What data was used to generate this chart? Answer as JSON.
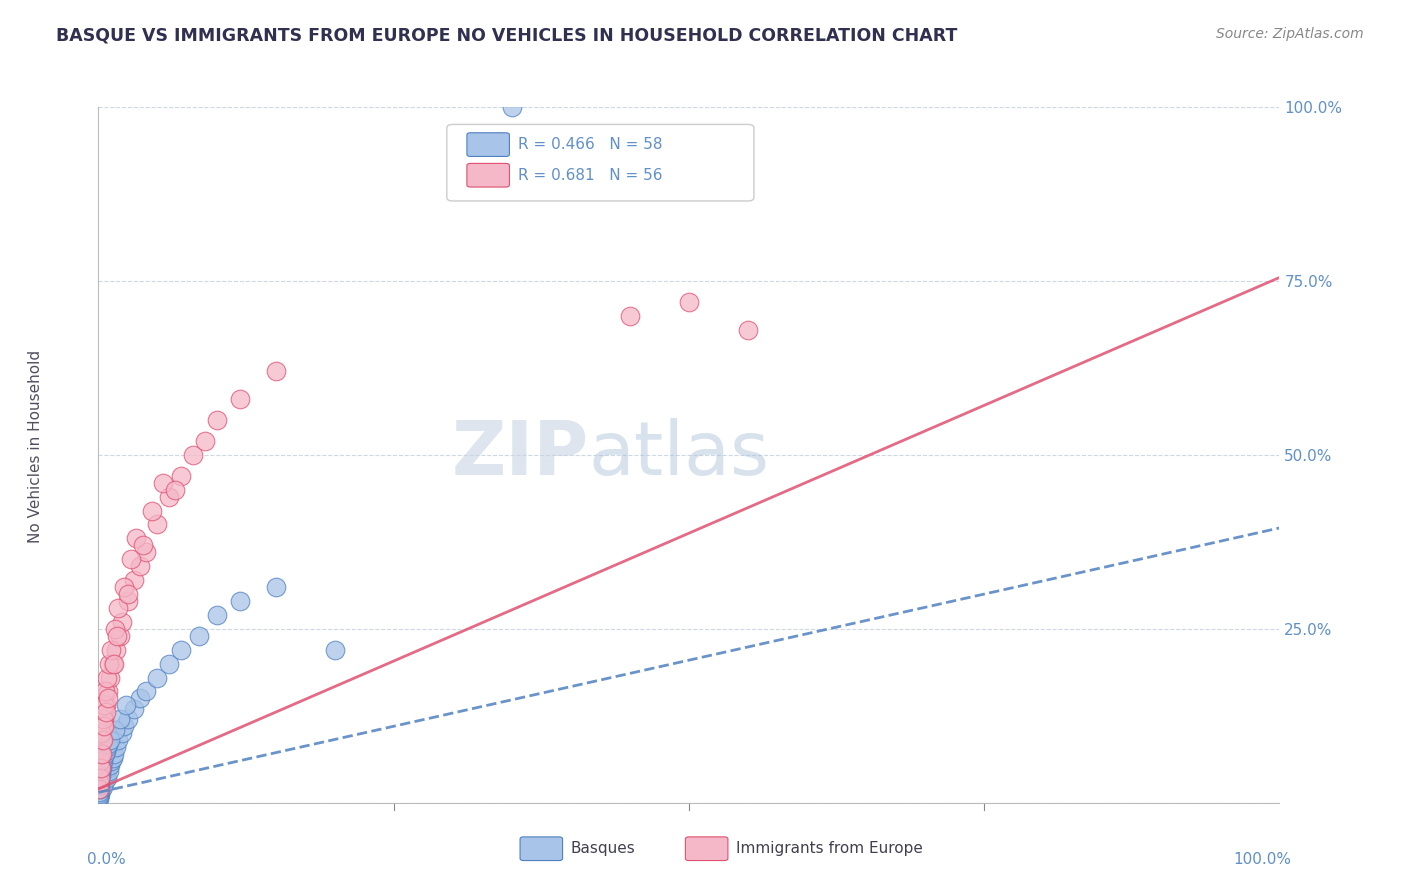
{
  "title": "BASQUE VS IMMIGRANTS FROM EUROPE NO VEHICLES IN HOUSEHOLD CORRELATION CHART",
  "source": "Source: ZipAtlas.com",
  "ylabel": "No Vehicles in Household",
  "legend_blue_r": "R = 0.466",
  "legend_blue_n": "N = 58",
  "legend_pink_r": "R = 0.681",
  "legend_pink_n": "N = 56",
  "watermark_zip": "ZIP",
  "watermark_atlas": "atlas",
  "blue_fill": "#a8c4e8",
  "blue_edge": "#5080c0",
  "pink_fill": "#f4b8c8",
  "pink_edge": "#e05070",
  "blue_line_color": "#5080c0",
  "pink_line_color": "#e05070",
  "axis_tick_color": "#6090c8",
  "title_color": "#303050",
  "grid_color": "#c8d4e4",
  "background_color": "#ffffff",
  "blue_line_slope": 0.38,
  "blue_line_intercept": 1.5,
  "pink_line_slope": 0.735,
  "pink_line_intercept": 2.0,
  "blue_scatter_x": [
    0.05,
    0.08,
    0.1,
    0.15,
    0.2,
    0.25,
    0.3,
    0.35,
    0.4,
    0.5,
    0.6,
    0.7,
    0.8,
    0.9,
    1.0,
    1.1,
    1.2,
    1.3,
    1.5,
    1.7,
    2.0,
    2.2,
    2.5,
    3.0,
    3.5,
    4.0,
    5.0,
    6.0,
    7.0,
    8.5,
    10.0,
    12.0,
    15.0,
    20.0,
    0.05,
    0.06,
    0.07,
    0.08,
    0.09,
    0.1,
    0.12,
    0.14,
    0.16,
    0.18,
    0.22,
    0.28,
    0.32,
    0.38,
    0.42,
    0.55,
    0.65,
    0.75,
    0.85,
    1.0,
    1.4,
    1.8,
    2.3,
    35.0
  ],
  "blue_scatter_y": [
    1.0,
    1.5,
    2.0,
    1.2,
    2.5,
    1.8,
    3.0,
    2.2,
    3.5,
    2.8,
    4.0,
    3.5,
    5.0,
    4.5,
    5.5,
    6.0,
    6.5,
    7.0,
    8.0,
    9.0,
    10.0,
    11.0,
    12.0,
    13.5,
    15.0,
    16.0,
    18.0,
    20.0,
    22.0,
    24.0,
    27.0,
    29.0,
    31.0,
    22.0,
    0.5,
    0.8,
    1.0,
    1.3,
    1.6,
    2.0,
    2.5,
    3.0,
    3.5,
    4.0,
    4.5,
    5.0,
    5.5,
    6.0,
    6.5,
    7.0,
    7.5,
    8.0,
    8.5,
    9.0,
    10.5,
    12.0,
    14.0,
    100.0
  ],
  "pink_scatter_x": [
    0.05,
    0.1,
    0.15,
    0.2,
    0.3,
    0.4,
    0.5,
    0.6,
    0.8,
    1.0,
    1.2,
    1.5,
    1.8,
    2.0,
    2.5,
    3.0,
    3.5,
    4.0,
    5.0,
    6.0,
    7.0,
    8.0,
    10.0,
    12.0,
    15.0,
    0.25,
    0.35,
    0.45,
    0.55,
    0.7,
    0.9,
    1.1,
    1.4,
    1.7,
    2.2,
    2.8,
    3.2,
    4.5,
    5.5,
    0.08,
    0.12,
    0.18,
    0.28,
    0.38,
    0.48,
    0.65,
    0.85,
    1.3,
    1.6,
    2.5,
    3.8,
    6.5,
    9.0,
    45.0,
    50.0,
    55.0
  ],
  "pink_scatter_y": [
    3.0,
    5.0,
    6.0,
    7.0,
    9.0,
    11.0,
    12.0,
    14.0,
    16.0,
    18.0,
    20.0,
    22.0,
    24.0,
    26.0,
    29.0,
    32.0,
    34.0,
    36.0,
    40.0,
    44.0,
    47.0,
    50.0,
    55.0,
    58.0,
    62.0,
    10.0,
    12.0,
    14.0,
    16.0,
    18.0,
    20.0,
    22.0,
    25.0,
    28.0,
    31.0,
    35.0,
    38.0,
    42.0,
    46.0,
    2.0,
    3.5,
    5.0,
    7.0,
    9.0,
    11.0,
    13.0,
    15.0,
    20.0,
    24.0,
    30.0,
    37.0,
    45.0,
    52.0,
    70.0,
    72.0,
    68.0
  ],
  "xlim": [
    0,
    100
  ],
  "ylim": [
    0,
    100
  ],
  "yticks": [
    0,
    25,
    50,
    75,
    100
  ],
  "ytick_labels": [
    "",
    "25.0%",
    "50.0%",
    "75.0%",
    "100.0%"
  ]
}
